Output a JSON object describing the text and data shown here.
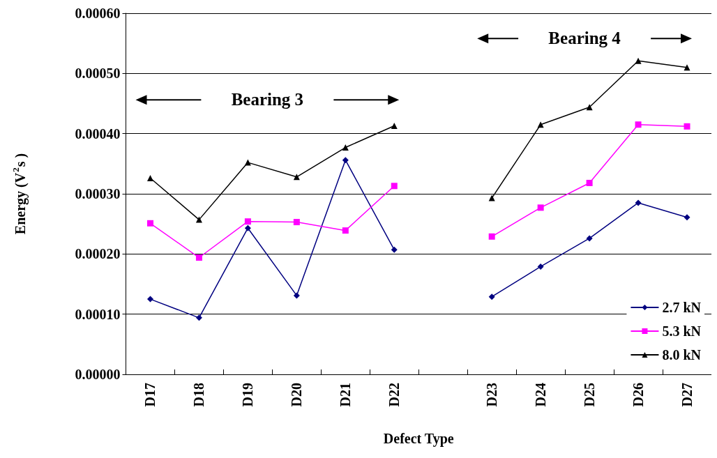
{
  "chart_data": {
    "type": "line",
    "xlabel": "Defect Type",
    "ylabel": "Energy (V$^{2}$s )",
    "categories": [
      "D17",
      "D18",
      "D19",
      "D20",
      "D21",
      "D22",
      null,
      "D23",
      "D24",
      "D25",
      "D26",
      "D27"
    ],
    "series": [
      {
        "name": "2.7 kN",
        "color": "#000080",
        "marker": "diamond",
        "values": [
          0.000125,
          9.4e-05,
          0.000243,
          0.000131,
          0.000356,
          0.000207,
          null,
          0.000129,
          0.000179,
          0.000226,
          0.000285,
          0.000261
        ]
      },
      {
        "name": "5.3 kN",
        "color": "#ff00ff",
        "marker": "square",
        "values": [
          0.000251,
          0.000194,
          0.000254,
          0.000253,
          0.000239,
          0.000313,
          null,
          0.000229,
          0.000277,
          0.000318,
          0.000415,
          0.000412
        ]
      },
      {
        "name": "8.0 kN",
        "color": "#000000",
        "marker": "triangle",
        "values": [
          0.000326,
          0.000257,
          0.000352,
          0.000328,
          0.000377,
          0.000413,
          null,
          0.000293,
          0.000415,
          0.000444,
          0.000521,
          0.00051
        ]
      }
    ],
    "ylim": [
      0,
      0.0006
    ],
    "yticks": [
      {
        "value": 0,
        "label": "0.00000"
      },
      {
        "value": 0.0001,
        "label": "0.00010"
      },
      {
        "value": 0.0002,
        "label": "0.00020"
      },
      {
        "value": 0.0003,
        "label": "0.00030"
      },
      {
        "value": 0.0004,
        "label": "0.00040"
      },
      {
        "value": 0.0005,
        "label": "0.00050"
      },
      {
        "value": 0.0006,
        "label": "0.00060"
      }
    ],
    "grid": "y",
    "legend": "bottom right",
    "annotations": [
      "Bearing 3",
      "Bearing 4"
    ]
  }
}
